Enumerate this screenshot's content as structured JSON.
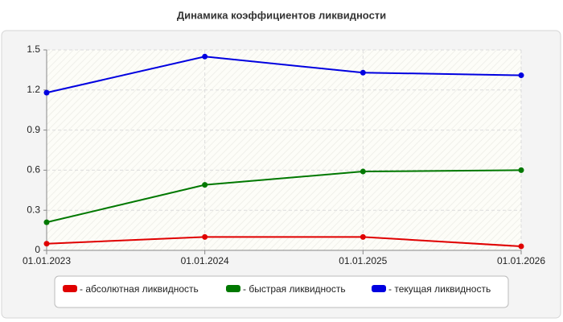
{
  "chart_data": {
    "type": "line",
    "title": "Динамика коэффициентов ликвидности",
    "categories": [
      "01.01.2023",
      "01.01.2024",
      "01.01.2025",
      "01.01.2026"
    ],
    "series": [
      {
        "name": "- абсолютная ликвидность",
        "color": "#e00000",
        "values": [
          0.05,
          0.1,
          0.1,
          0.03
        ]
      },
      {
        "name": "- быстрая ликвидность",
        "color": "#007800",
        "values": [
          0.21,
          0.49,
          0.59,
          0.6
        ]
      },
      {
        "name": "- текущая ликвидность",
        "color": "#0000e0",
        "values": [
          1.18,
          1.45,
          1.33,
          1.31
        ]
      }
    ],
    "ylim": [
      0,
      1.5
    ],
    "yticks": [
      0,
      0.3,
      0.6,
      0.9,
      1.2,
      1.5
    ],
    "grid": true,
    "legend": "bottom"
  }
}
